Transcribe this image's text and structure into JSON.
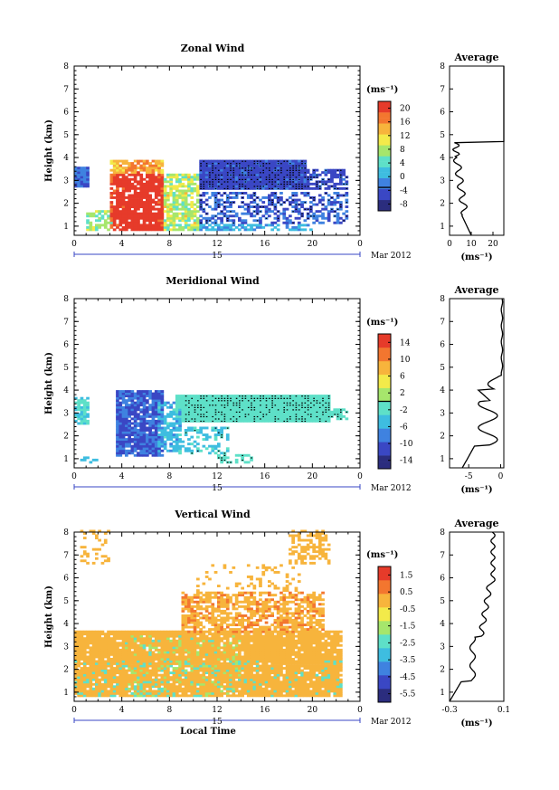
{
  "chart_data": [
    {
      "type": "heatmap",
      "title": "Zonal Wind",
      "ylabel": "Height (km)",
      "ylim": [
        0.6,
        8
      ],
      "xlim": [
        0,
        24
      ],
      "xticks": [
        "0",
        "4",
        "8",
        "12",
        "16",
        "20",
        "0"
      ],
      "yticks": [
        "1",
        "2",
        "3",
        "4",
        "5",
        "6",
        "7",
        "8"
      ],
      "day_label": "15",
      "date_label": "Mar 2012",
      "unit": "(ms⁻¹)",
      "colorbar": {
        "min": -6,
        "max": 22,
        "ticks": [
          "20",
          "16",
          "12",
          "8",
          "4",
          "0",
          "-4",
          "-8"
        ],
        "zero_line": 0
      },
      "average": {
        "title": "Average",
        "xlim": [
          0,
          25
        ],
        "xticks": [
          "0",
          "10",
          "20"
        ],
        "xlabel": "(ms⁻¹)"
      }
    },
    {
      "type": "heatmap",
      "title": "Meridional Wind",
      "ylabel": "Height (km)",
      "ylim": [
        0.6,
        8
      ],
      "xlim": [
        0,
        24
      ],
      "xticks": [
        "0",
        "4",
        "8",
        "12",
        "16",
        "20",
        "0"
      ],
      "yticks": [
        "1",
        "2",
        "3",
        "4",
        "5",
        "6",
        "7",
        "8"
      ],
      "day_label": "15",
      "date_label": "Mar 2012",
      "unit": "(ms⁻¹)",
      "colorbar": {
        "min": -16,
        "max": 16,
        "ticks": [
          "14",
          "10",
          "6",
          "2",
          "-2",
          "-6",
          "-10",
          "-14"
        ],
        "zero_line": 0
      },
      "average": {
        "title": "Average",
        "xlim": [
          -8,
          0.5
        ],
        "xticks": [
          "-5",
          "0"
        ],
        "xlabel": "(ms⁻¹)"
      }
    },
    {
      "type": "heatmap",
      "title": "Vertical Wind",
      "ylabel": "Height (km)",
      "xlabel": "Local Time",
      "ylim": [
        0.6,
        8
      ],
      "xlim": [
        0,
        24
      ],
      "xticks": [
        "0",
        "4",
        "8",
        "12",
        "16",
        "20",
        "0"
      ],
      "yticks": [
        "1",
        "2",
        "3",
        "4",
        "5",
        "6",
        "7",
        "8"
      ],
      "day_label": "15",
      "date_label": "Mar 2012",
      "unit": "(ms⁻¹)",
      "colorbar": {
        "min": -6,
        "max": 2,
        "ticks": [
          "1.5",
          "0.5",
          "-0.5",
          "-1.5",
          "-2.5",
          "-3.5",
          "-4.5",
          "-5.5"
        ]
      },
      "average": {
        "title": "Average",
        "xlim": [
          -0.3,
          0.1
        ],
        "xticks": [
          "-0.3",
          "0.1"
        ],
        "xlabel": "(ms⁻¹)"
      }
    }
  ],
  "colors": {
    "cmap": [
      "#2b2d7e",
      "#3a47c4",
      "#3f82e0",
      "#3ebde0",
      "#5ee0c8",
      "#a6e66c",
      "#f3ea4a",
      "#f7b43c",
      "#f3762f",
      "#e63b2a"
    ]
  }
}
